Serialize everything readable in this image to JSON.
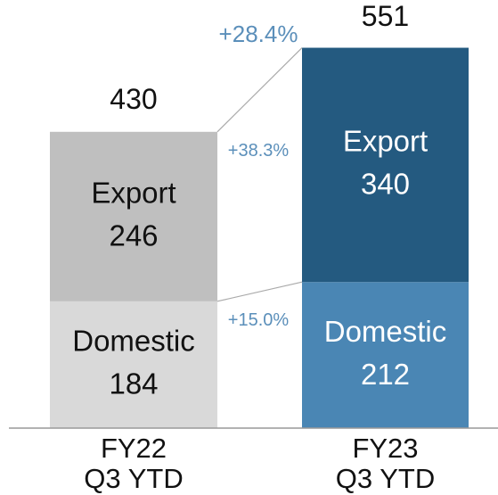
{
  "chart_data": {
    "type": "stacked_bar",
    "categories": [
      "FY22 Q3 YTD",
      "FY23 Q3 YTD"
    ],
    "series": [
      {
        "name": "Domestic",
        "colors": [
          "#d9d9d9",
          "#4a86b4"
        ],
        "values": [
          184,
          212
        ]
      },
      {
        "name": "Export",
        "colors": [
          "#bfbfbf",
          "#245a80"
        ],
        "values": [
          246,
          340
        ]
      }
    ],
    "totals": [
      430,
      551
    ],
    "annotations": {
      "total": "+28.4%",
      "series": [
        "+15.0%",
        "+38.3%"
      ]
    },
    "ylim": [
      0,
      620
    ]
  }
}
